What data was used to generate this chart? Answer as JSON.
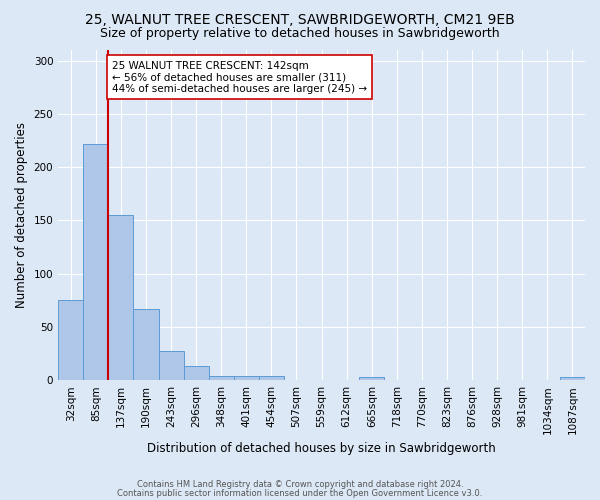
{
  "title_line1": "25, WALNUT TREE CRESCENT, SAWBRIDGEWORTH, CM21 9EB",
  "title_line2": "Size of property relative to detached houses in Sawbridgeworth",
  "xlabel": "Distribution of detached houses by size in Sawbridgeworth",
  "ylabel": "Number of detached properties",
  "footer_line1": "Contains HM Land Registry data © Crown copyright and database right 2024.",
  "footer_line2": "Contains public sector information licensed under the Open Government Licence v3.0.",
  "bin_labels": [
    "32sqm",
    "85sqm",
    "137sqm",
    "190sqm",
    "243sqm",
    "296sqm",
    "348sqm",
    "401sqm",
    "454sqm",
    "507sqm",
    "559sqm",
    "612sqm",
    "665sqm",
    "718sqm",
    "770sqm",
    "823sqm",
    "876sqm",
    "928sqm",
    "981sqm",
    "1034sqm",
    "1087sqm"
  ],
  "bin_values": [
    75,
    222,
    155,
    67,
    27,
    13,
    4,
    4,
    4,
    0,
    0,
    0,
    3,
    0,
    0,
    0,
    0,
    0,
    0,
    0,
    3
  ],
  "bar_color": "#aec6e8",
  "bar_edge_color": "#5b9bd5",
  "vline_color": "#cc0000",
  "vline_x": 1.5,
  "annotation_text": "25 WALNUT TREE CRESCENT: 142sqm\n← 56% of detached houses are smaller (311)\n44% of semi-detached houses are larger (245) →",
  "annotation_box_color": "#ffffff",
  "annotation_box_edge_color": "#cc0000",
  "ylim": [
    0,
    310
  ],
  "yticks": [
    0,
    50,
    100,
    150,
    200,
    250,
    300
  ],
  "background_color": "#dce8f5",
  "grid_color": "#ffffff",
  "title_fontsize": 10,
  "subtitle_fontsize": 9,
  "tick_fontsize": 7.5,
  "ylabel_fontsize": 8.5,
  "xlabel_fontsize": 8.5,
  "annot_fontsize": 7.5,
  "footer_fontsize": 6.0
}
